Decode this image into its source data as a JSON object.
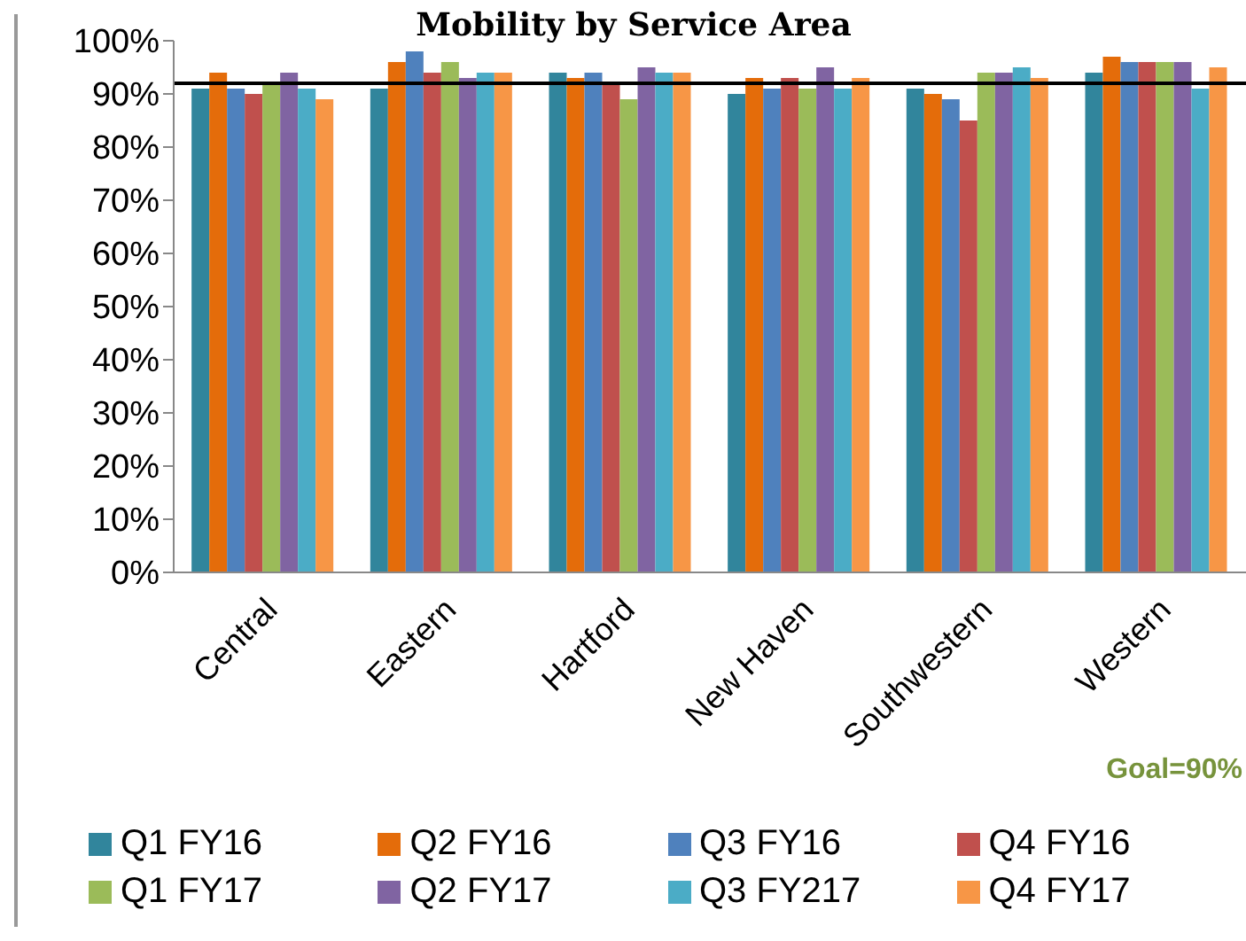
{
  "chart_data": {
    "type": "bar",
    "title": "Mobility by Service Area",
    "categories": [
      "Central",
      "Eastern",
      "Hartford",
      "New Haven",
      "Southwestern",
      "Western"
    ],
    "series": [
      {
        "name": "Q1 FY16",
        "color": "#31859c",
        "values": [
          91,
          91,
          94,
          90,
          91,
          94
        ]
      },
      {
        "name": "Q2 FY16",
        "color": "#e46c0a",
        "values": [
          94,
          96,
          93,
          93,
          90,
          97
        ]
      },
      {
        "name": "Q3 FY16",
        "color": "#4f81bd",
        "values": [
          91,
          98,
          94,
          91,
          89,
          96
        ]
      },
      {
        "name": "Q4 FY16",
        "color": "#c0504d",
        "values": [
          90,
          94,
          92,
          93,
          85,
          96
        ]
      },
      {
        "name": "Q1 FY17",
        "color": "#9bbb59",
        "values": [
          92,
          96,
          89,
          91,
          94,
          96
        ]
      },
      {
        "name": "Q2 FY17",
        "color": "#8064a2",
        "values": [
          94,
          93,
          95,
          95,
          94,
          96
        ]
      },
      {
        "name": "Q3 FY217",
        "color": "#4bacc6",
        "values": [
          91,
          94,
          94,
          91,
          95,
          91
        ]
      },
      {
        "name": "Q4 FY17",
        "color": "#f79646",
        "values": [
          89,
          94,
          94,
          93,
          93,
          95
        ]
      }
    ],
    "ylim": [
      0,
      100
    ],
    "yticks": [
      {
        "value": 0,
        "label": "0%"
      },
      {
        "value": 10,
        "label": "10%"
      },
      {
        "value": 20,
        "label": "20%"
      },
      {
        "value": 30,
        "label": "30%"
      },
      {
        "value": 40,
        "label": "40%"
      },
      {
        "value": 50,
        "label": "50%"
      },
      {
        "value": 60,
        "label": "60%"
      },
      {
        "value": 70,
        "label": "70%"
      },
      {
        "value": 80,
        "label": "80%"
      },
      {
        "value": 90,
        "label": "90%"
      },
      {
        "value": 100,
        "label": "100%"
      }
    ],
    "ref_lines": [
      {
        "axis": "y",
        "value": 92,
        "color": "#000000"
      }
    ],
    "annotations": [
      "Goal=90%"
    ],
    "legend": "bottom",
    "grid": false
  }
}
